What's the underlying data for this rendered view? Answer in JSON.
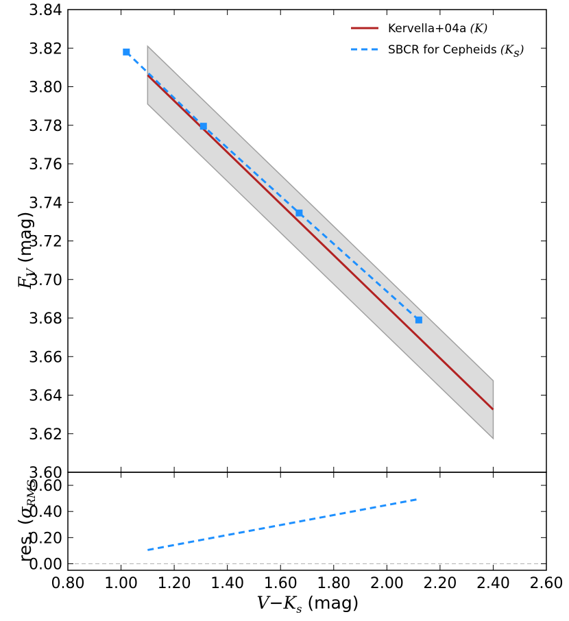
{
  "chart_data": [
    {
      "type": "line",
      "panel": "main",
      "ylabel": {
        "math": "F",
        "sub": "V",
        "unit": " (mag)"
      },
      "xlim": [
        0.8,
        2.6
      ],
      "ylim": [
        3.6,
        3.84
      ],
      "xticks": [
        "0.80",
        "1.00",
        "1.20",
        "1.40",
        "1.60",
        "1.80",
        "2.00",
        "2.20",
        "2.40",
        "2.60"
      ],
      "yticks": [
        "3.60",
        "3.62",
        "3.64",
        "3.66",
        "3.68",
        "3.70",
        "3.72",
        "3.74",
        "3.76",
        "3.78",
        "3.80",
        "3.82",
        "3.84"
      ],
      "band": {
        "x": [
          1.1,
          2.4
        ],
        "upper": [
          3.821,
          3.6475
        ],
        "lower": [
          3.791,
          3.6175
        ],
        "color": "#dcdcdc",
        "edge_color": "#a0a0a0"
      },
      "series": [
        {
          "name": "Kervella+04a",
          "name_math": "(K)",
          "style": "solid",
          "color": "#b22222",
          "x": [
            1.1,
            2.4
          ],
          "y": [
            3.806,
            3.6325
          ]
        },
        {
          "name": "SBCR for Cepheids",
          "name_math": "(K",
          "name_math_sub": "s",
          "name_math_tail": ")",
          "style": "dashed",
          "color": "#1e90ff",
          "marker": "square",
          "x": [
            1.02,
            1.31,
            1.67,
            2.12
          ],
          "y": [
            3.818,
            3.7795,
            3.7345,
            3.679
          ]
        }
      ],
      "legend": "top-right",
      "grid": false
    },
    {
      "type": "line",
      "panel": "residuals",
      "ylabel": {
        "prefix": "res. (",
        "math": "σ",
        "sub": "RMS"
      },
      "xlabel": {
        "math": "V",
        "op": "−",
        "math2": "K",
        "sub": "s",
        "unit": " (mag)"
      },
      "xlim": [
        0.8,
        2.6
      ],
      "ylim": [
        -0.05,
        0.7
      ],
      "yticks": [
        "0.00",
        "0.20",
        "0.40",
        "0.60"
      ],
      "zero_line": {
        "y": 0,
        "style": "dashed",
        "color": "#b0b0b0"
      },
      "series": [
        {
          "name": "SBCR for Cepheids",
          "style": "dashed",
          "color": "#1e90ff",
          "x": [
            1.1,
            2.12
          ],
          "y": [
            0.105,
            0.495
          ]
        }
      ]
    }
  ]
}
